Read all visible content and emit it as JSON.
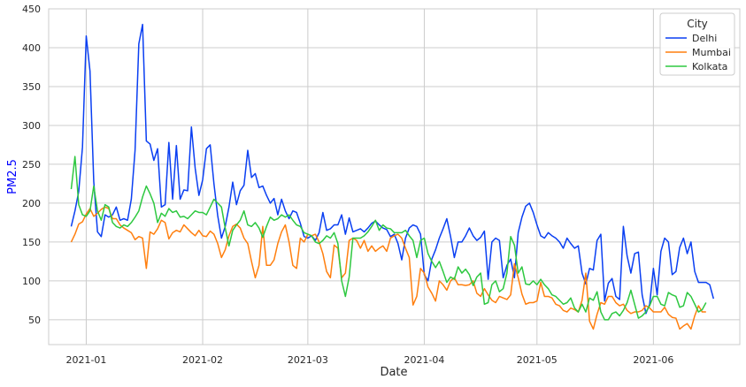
{
  "chart_data": {
    "type": "line",
    "title": "",
    "xlabel": "Date",
    "ylabel": "PM2.5",
    "ylabel_color": "#0000ff",
    "x_start": "2020-12-28",
    "x_ticks": [
      "2021-01",
      "2021-02",
      "2021-03",
      "2021-04",
      "2021-05",
      "2021-06"
    ],
    "x_tick_dates": [
      "2021-01-01",
      "2021-02-01",
      "2021-03-01",
      "2021-04-01",
      "2021-05-01",
      "2021-06-01"
    ],
    "xlim": [
      "2020-12-22",
      "2021-06-24"
    ],
    "ylim": [
      18,
      450
    ],
    "y_ticks": [
      50,
      100,
      150,
      200,
      250,
      300,
      350,
      400,
      450
    ],
    "grid": true,
    "legend": {
      "title": "City",
      "position": "top-right"
    },
    "series": [
      {
        "name": "Delhi",
        "color": "#0a3ff2",
        "values": [
          170,
          190,
          215,
          272,
          415,
          370,
          228,
          163,
          157,
          185,
          182,
          185,
          195,
          178,
          180,
          178,
          205,
          268,
          405,
          430,
          280,
          276,
          255,
          270,
          195,
          198,
          278,
          205,
          274,
          205,
          217,
          216,
          298,
          245,
          210,
          230,
          270,
          275,
          225,
          184,
          155,
          170,
          195,
          227,
          198,
          216,
          223,
          268,
          233,
          238,
          220,
          222,
          210,
          200,
          206,
          185,
          205,
          190,
          180,
          190,
          188,
          174,
          157,
          155,
          158,
          152,
          162,
          188,
          165,
          167,
          172,
          172,
          185,
          160,
          181,
          163,
          165,
          167,
          163,
          168,
          174,
          177,
          172,
          168,
          166,
          157,
          160,
          148,
          127,
          155,
          168,
          172,
          170,
          160,
          108,
          100,
          128,
          140,
          155,
          167,
          180,
          157,
          130,
          150,
          150,
          158,
          168,
          158,
          152,
          156,
          164,
          102,
          150,
          155,
          152,
          104,
          120,
          128,
          104,
          162,
          182,
          196,
          200,
          188,
          172,
          158,
          155,
          162,
          158,
          155,
          150,
          142,
          155,
          148,
          142,
          145,
          110,
          96,
          116,
          114,
          152,
          160,
          74,
          97,
          103,
          80,
          76,
          170,
          132,
          110,
          135,
          137,
          82,
          58,
          70,
          116,
          82,
          138,
          155,
          150,
          108,
          112,
          143,
          155,
          135,
          150,
          112,
          98,
          98,
          98,
          95,
          77
        ]
      },
      {
        "name": "Mumbai",
        "color": "#ff7f0e",
        "values": [
          150,
          160,
          173,
          176,
          186,
          193,
          183,
          187,
          192,
          195,
          193,
          180,
          180,
          172,
          168,
          165,
          162,
          153,
          157,
          155,
          116,
          163,
          160,
          167,
          178,
          175,
          154,
          162,
          165,
          163,
          172,
          167,
          162,
          158,
          165,
          158,
          157,
          164,
          160,
          148,
          130,
          140,
          158,
          170,
          173,
          168,
          155,
          148,
          125,
          104,
          120,
          170,
          120,
          120,
          127,
          148,
          163,
          172,
          150,
          120,
          116,
          155,
          150,
          160,
          158,
          160,
          150,
          135,
          112,
          104,
          146,
          142,
          104,
          110,
          152,
          155,
          152,
          142,
          152,
          138,
          145,
          138,
          142,
          145,
          138,
          155,
          158,
          160,
          155,
          142,
          130,
          69,
          80,
          116,
          110,
          92,
          84,
          74,
          100,
          95,
          88,
          100,
          104,
          95,
          95,
          94,
          95,
          100,
          84,
          80,
          90,
          82,
          75,
          72,
          80,
          78,
          76,
          82,
          122,
          104,
          83,
          70,
          72,
          72,
          74,
          98,
          80,
          80,
          78,
          70,
          68,
          62,
          60,
          65,
          63,
          60,
          75,
          110,
          48,
          38,
          57,
          72,
          70,
          80,
          80,
          72,
          68,
          70,
          62,
          58,
          60,
          60,
          62,
          68,
          65,
          60,
          60,
          60,
          66,
          57,
          53,
          52,
          38,
          42,
          45,
          38,
          55,
          68,
          60,
          60
        ]
      },
      {
        "name": "Kolkata",
        "color": "#2ec840",
        "values": [
          218,
          260,
          198,
          185,
          183,
          190,
          222,
          190,
          178,
          198,
          195,
          175,
          170,
          168,
          172,
          170,
          175,
          182,
          190,
          208,
          222,
          212,
          200,
          175,
          187,
          183,
          193,
          188,
          190,
          182,
          183,
          180,
          185,
          190,
          188,
          188,
          185,
          195,
          205,
          200,
          195,
          168,
          145,
          165,
          172,
          178,
          190,
          172,
          170,
          175,
          168,
          156,
          170,
          182,
          178,
          180,
          185,
          182,
          185,
          178,
          172,
          170,
          162,
          160,
          158,
          150,
          148,
          152,
          158,
          155,
          162,
          148,
          100,
          80,
          105,
          155,
          155,
          155,
          158,
          163,
          170,
          178,
          165,
          172,
          168,
          167,
          162,
          162,
          162,
          165,
          158,
          152,
          130,
          152,
          155,
          135,
          125,
          117,
          125,
          112,
          98,
          105,
          102,
          118,
          110,
          115,
          108,
          94,
          105,
          110,
          70,
          72,
          95,
          100,
          86,
          90,
          110,
          157,
          146,
          110,
          118,
          96,
          95,
          100,
          95,
          102,
          95,
          90,
          82,
          80,
          75,
          70,
          72,
          78,
          65,
          60,
          70,
          60,
          78,
          75,
          86,
          60,
          50,
          50,
          58,
          60,
          55,
          62,
          72,
          88,
          70,
          52,
          55,
          60,
          68,
          80,
          80,
          70,
          68,
          85,
          82,
          80,
          66,
          68,
          85,
          80,
          70,
          60,
          63,
          72
        ]
      }
    ]
  }
}
